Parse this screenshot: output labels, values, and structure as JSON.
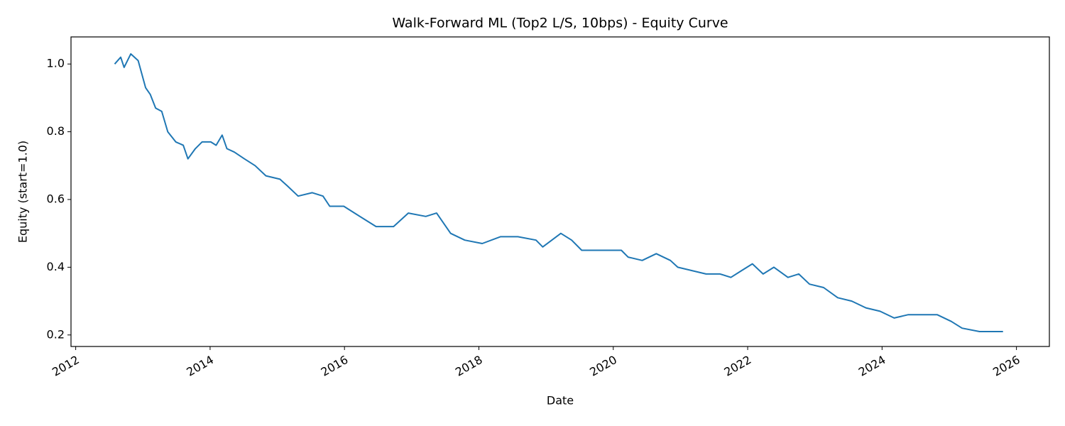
{
  "chart_data": {
    "type": "line",
    "title": "Walk-Forward ML (Top2 L/S, 10bps) - Equity Curve",
    "x_label": "Date",
    "y_label": "Equity (start=1.0)",
    "color": "#1f77b4",
    "x": [
      2012.58,
      2012.67,
      2012.72,
      2012.82,
      2012.93,
      2013.04,
      2013.11,
      2013.19,
      2013.28,
      2013.37,
      2013.49,
      2013.6,
      2013.67,
      2013.78,
      2013.88,
      2014.01,
      2014.09,
      2014.18,
      2014.25,
      2014.36,
      2014.51,
      2014.67,
      2014.83,
      2015.04,
      2015.15,
      2015.31,
      2015.52,
      2015.68,
      2015.78,
      2015.99,
      2016.15,
      2016.31,
      2016.47,
      2016.73,
      2016.95,
      2017.21,
      2017.37,
      2017.58,
      2017.79,
      2018.05,
      2018.32,
      2018.58,
      2018.85,
      2018.95,
      2019.22,
      2019.38,
      2019.53,
      2019.85,
      2020.12,
      2020.22,
      2020.43,
      2020.64,
      2020.85,
      2020.96,
      2021.17,
      2021.38,
      2021.59,
      2021.75,
      2021.91,
      2022.07,
      2022.23,
      2022.39,
      2022.6,
      2022.76,
      2022.92,
      2023.13,
      2023.34,
      2023.55,
      2023.76,
      2023.97,
      2024.18,
      2024.39,
      2024.61,
      2024.82,
      2025.03,
      2025.19,
      2025.45,
      2025.8
    ],
    "values": [
      1.0,
      1.02,
      0.99,
      1.03,
      1.01,
      0.93,
      0.91,
      0.87,
      0.86,
      0.8,
      0.77,
      0.76,
      0.72,
      0.75,
      0.77,
      0.77,
      0.76,
      0.79,
      0.75,
      0.74,
      0.72,
      0.7,
      0.67,
      0.66,
      0.64,
      0.61,
      0.62,
      0.61,
      0.58,
      0.58,
      0.56,
      0.54,
      0.52,
      0.52,
      0.56,
      0.55,
      0.56,
      0.5,
      0.48,
      0.47,
      0.49,
      0.49,
      0.48,
      0.46,
      0.5,
      0.48,
      0.45,
      0.45,
      0.45,
      0.43,
      0.42,
      0.44,
      0.42,
      0.4,
      0.39,
      0.38,
      0.38,
      0.37,
      0.39,
      0.41,
      0.38,
      0.4,
      0.37,
      0.38,
      0.35,
      0.34,
      0.31,
      0.3,
      0.28,
      0.27,
      0.25,
      0.26,
      0.26,
      0.26,
      0.24,
      0.22,
      0.21,
      0.21
    ],
    "xlim": [
      2011.93,
      2026.49
    ],
    "xticks": [
      2012,
      2014,
      2016,
      2018,
      2020,
      2022,
      2024,
      2026
    ],
    "ylim": [
      0.166,
      1.08
    ],
    "yticks": [
      0.2,
      0.4,
      0.6,
      0.8,
      {
        "value": 1,
        "label": "1.0"
      }
    ],
    "grid": false
  }
}
